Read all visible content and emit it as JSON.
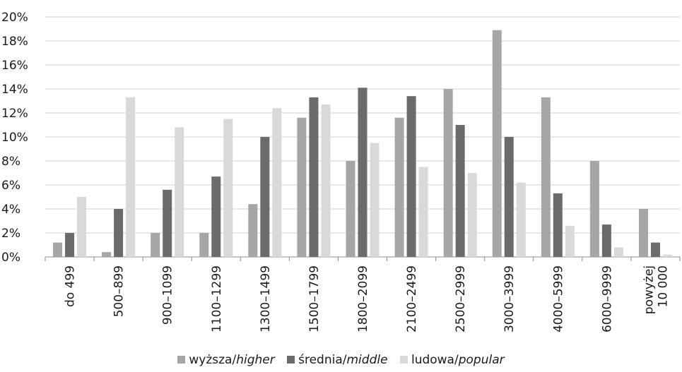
{
  "chart_data": {
    "type": "bar",
    "categories": [
      "do 499",
      "500–899",
      "900–1099",
      "1100–1299",
      "1300–1499",
      "1500–1799",
      "1800–2099",
      "2100–2499",
      "2500–2999",
      "3000–3999",
      "4000–5999",
      "6000–9999",
      "powyżej 10 000"
    ],
    "series": [
      {
        "name": "wyższa/higher",
        "color": "#a6a6a6",
        "values": [
          1.2,
          0.4,
          2.0,
          2.0,
          4.4,
          11.6,
          8.0,
          11.6,
          14.0,
          18.9,
          13.3,
          8.0,
          4.0
        ]
      },
      {
        "name": "średnia/middle",
        "color": "#6b6b6b",
        "values": [
          2.0,
          4.0,
          5.6,
          6.7,
          10.0,
          13.3,
          14.1,
          13.4,
          11.0,
          10.0,
          5.3,
          2.7,
          1.2
        ]
      },
      {
        "name": "ludowa/popular",
        "color": "#d9d9d9",
        "values": [
          5.0,
          13.3,
          10.8,
          11.5,
          12.4,
          12.7,
          9.5,
          7.5,
          7.0,
          6.2,
          2.6,
          0.8,
          0.2
        ]
      }
    ],
    "y_ticks": [
      "0%",
      "2%",
      "4%",
      "6%",
      "8%",
      "10%",
      "12%",
      "14%",
      "16%",
      "18%",
      "20%"
    ],
    "ylim": [
      0,
      20
    ],
    "grid": true,
    "legend_position": "bottom"
  },
  "legend": [
    {
      "prefix": "wyższa/",
      "italic": "higher"
    },
    {
      "prefix": "średnia/",
      "italic": "middle"
    },
    {
      "prefix": "ludowa/",
      "italic": "popular"
    }
  ]
}
